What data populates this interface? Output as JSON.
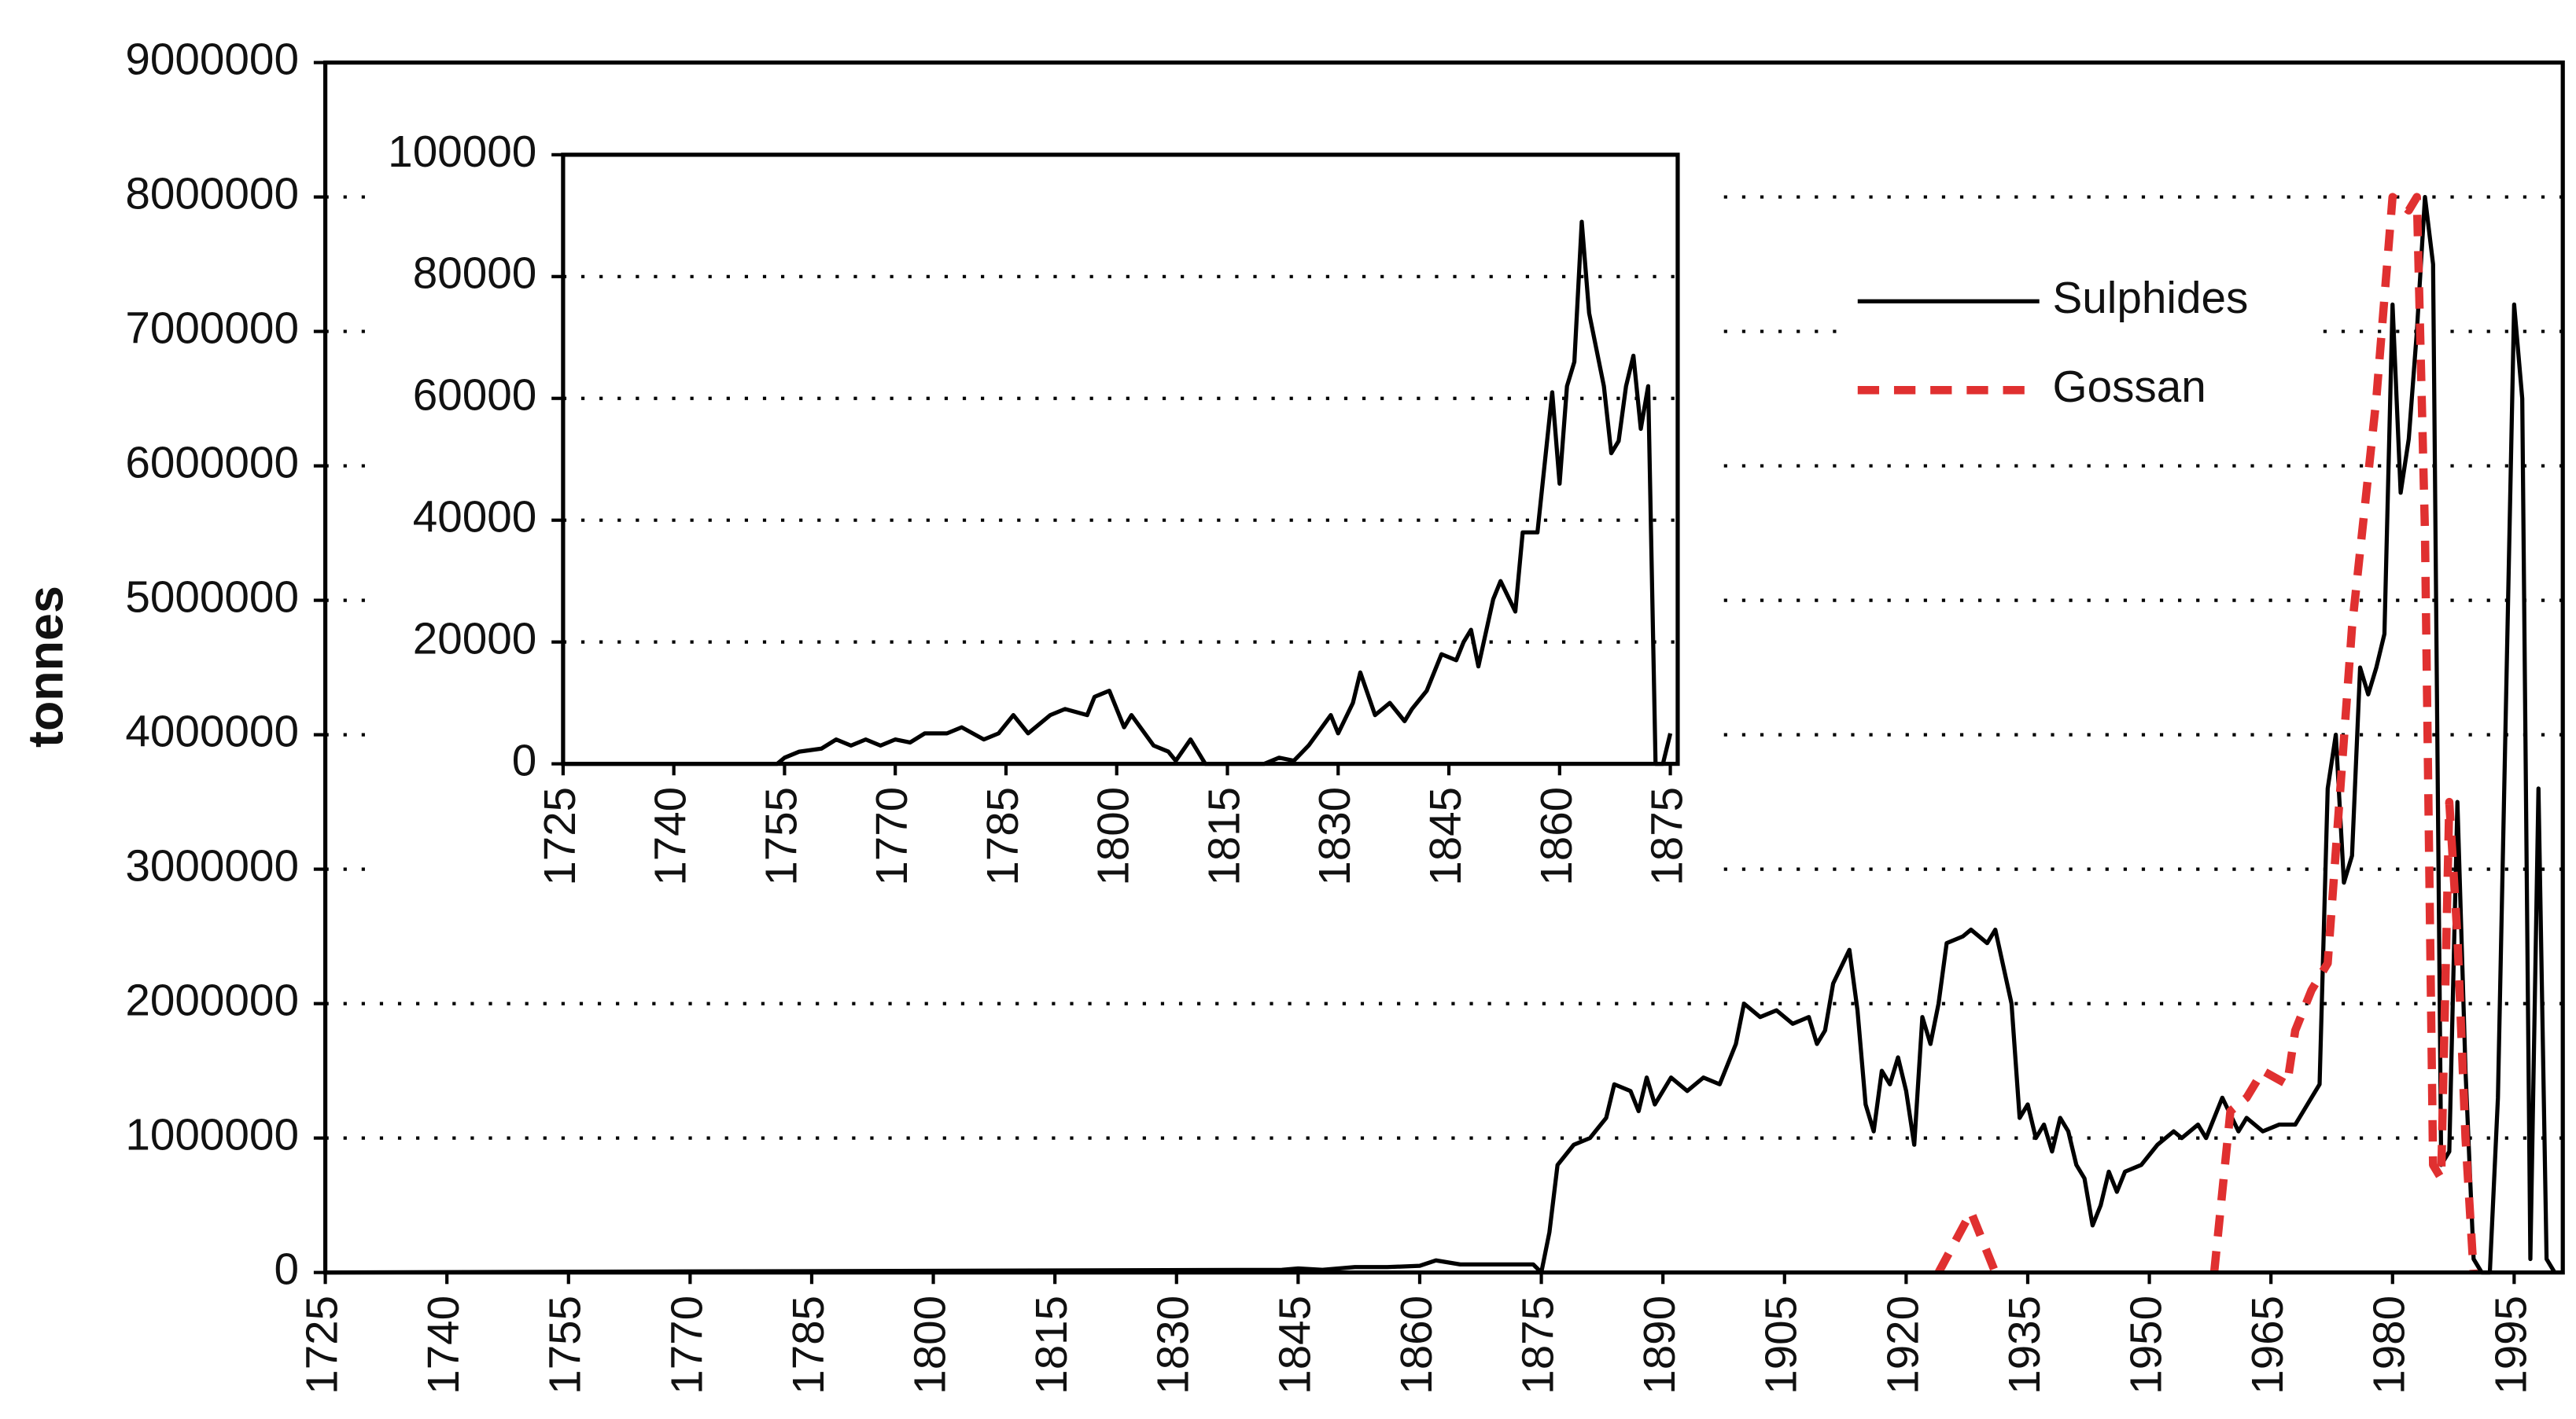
{
  "chart_data": [
    {
      "type": "line",
      "y_label": "tonnes",
      "xlim": [
        1725,
        2001
      ],
      "xticks": [
        1725,
        1740,
        1755,
        1770,
        1785,
        1800,
        1815,
        1830,
        1845,
        1860,
        1875,
        1890,
        1905,
        1920,
        1935,
        1950,
        1965,
        1980,
        1995
      ],
      "ylim": [
        0,
        9000000
      ],
      "yticks": [
        0,
        1000000,
        2000000,
        3000000,
        4000000,
        5000000,
        6000000,
        7000000,
        8000000,
        9000000
      ],
      "grid": true,
      "legend": "upper right",
      "series": [
        {
          "name": "Sulphides",
          "color": "#000000",
          "linestyle": "solid",
          "x": [
            1725,
            1843,
            1845,
            1848,
            1852,
            1856,
            1860,
            1862,
            1865,
            1870,
            1874,
            1875,
            1876,
            1877,
            1879,
            1881,
            1883,
            1884,
            1886,
            1887,
            1888,
            1889,
            1891,
            1893,
            1895,
            1897,
            1899,
            1900,
            1902,
            1904,
            1906,
            1908,
            1909,
            1910,
            1911,
            1913,
            1914,
            1915,
            1916,
            1917,
            1918,
            1919,
            1920,
            1921,
            1922,
            1923,
            1924,
            1925,
            1927,
            1928,
            1930,
            1931,
            1933,
            1934,
            1935,
            1936,
            1937,
            1938,
            1939,
            1940,
            1941,
            1942,
            1943,
            1944,
            1945,
            1946,
            1947,
            1949,
            1951,
            1953,
            1954,
            1956,
            1957,
            1958,
            1959,
            1961,
            1962,
            1964,
            1966,
            1968,
            1969,
            1971,
            1972,
            1973,
            1974,
            1975,
            1976,
            1977,
            1978,
            1979,
            1980,
            1981,
            1982,
            1983,
            1984,
            1985,
            1986,
            1987,
            1988,
            1989,
            1990,
            1991,
            1992,
            1993,
            1995,
            1996,
            1997,
            1998,
            1999,
            2000
          ],
          "values": [
            0,
            20000,
            30000,
            20000,
            40000,
            40000,
            50000,
            90000,
            60000,
            60000,
            60000,
            0,
            300000,
            800000,
            950000,
            1000000,
            1150000,
            1400000,
            1350000,
            1200000,
            1450000,
            1250000,
            1450000,
            1350000,
            1450000,
            1400000,
            1700000,
            2000000,
            1900000,
            1950000,
            1850000,
            1900000,
            1700000,
            1800000,
            2150000,
            2400000,
            1950000,
            1250000,
            1050000,
            1500000,
            1400000,
            1600000,
            1350000,
            950000,
            1900000,
            1700000,
            2000000,
            2450000,
            2500000,
            2550000,
            2450000,
            2550000,
            2000000,
            1150000,
            1250000,
            1000000,
            1100000,
            900000,
            1150000,
            1050000,
            800000,
            700000,
            350000,
            500000,
            750000,
            600000,
            750000,
            800000,
            950000,
            1050000,
            1000000,
            1100000,
            1000000,
            1150000,
            1300000,
            1050000,
            1150000,
            1050000,
            1100000,
            1100000,
            1200000,
            1400000,
            3600000,
            4000000,
            2900000,
            3100000,
            4500000,
            4300000,
            4500000,
            4750000,
            7200000,
            5800000,
            6200000,
            7000000,
            8000000,
            7500000,
            800000,
            900000,
            3500000,
            1500000,
            100000,
            0,
            0,
            1300000,
            7200000,
            6500000,
            100000,
            3600000,
            100000,
            0
          ]
        },
        {
          "name": "Gossan",
          "color": "#e03030",
          "linestyle": "dashed",
          "x": [
            1924,
            1928,
            1931,
            1945,
            1958,
            1959,
            1960,
            1962,
            1964,
            1967,
            1968,
            1970,
            1972,
            1975,
            1978,
            1980,
            1982,
            1983,
            1984,
            1985,
            1986,
            1987,
            1988,
            1989,
            1990
          ],
          "values": [
            0,
            450000,
            0,
            null,
            0,
            600000,
            1200000,
            1300000,
            1500000,
            1400000,
            1800000,
            2100000,
            2300000,
            4800000,
            6500000,
            8000000,
            7900000,
            8000000,
            5500000,
            800000,
            700000,
            3500000,
            2500000,
            1000000,
            0
          ]
        }
      ]
    },
    {
      "type": "line",
      "xlim": [
        1725,
        1876
      ],
      "xticks": [
        1725,
        1740,
        1755,
        1770,
        1785,
        1800,
        1815,
        1830,
        1845,
        1860,
        1875
      ],
      "ylim": [
        0,
        100000
      ],
      "yticks": [
        0,
        20000,
        40000,
        60000,
        80000,
        100000
      ],
      "grid": true,
      "series": [
        {
          "color": "#000000",
          "linestyle": "solid",
          "x": [
            1725,
            1754,
            1755,
            1757,
            1760,
            1762,
            1764,
            1766,
            1768,
            1770,
            1772,
            1774,
            1777,
            1779,
            1782,
            1784,
            1786,
            1788,
            1791,
            1793,
            1796,
            1797,
            1799,
            1801,
            1802,
            1805,
            1807,
            1808,
            1810,
            1812,
            1820,
            1822,
            1824,
            1826,
            1829,
            1830,
            1832,
            1833,
            1835,
            1837,
            1839,
            1840,
            1842,
            1844,
            1846,
            1847,
            1848,
            1849,
            1851,
            1852,
            1854,
            1855,
            1857,
            1859,
            1860,
            1861,
            1862,
            1863,
            1864,
            1866,
            1867,
            1868,
            1869,
            1870,
            1871,
            1872,
            1873,
            1874,
            1875
          ],
          "values": [
            0,
            0,
            1000,
            2000,
            2500,
            4000,
            3000,
            4000,
            3000,
            4000,
            3500,
            5000,
            5000,
            6000,
            4000,
            5000,
            8000,
            5000,
            8000,
            9000,
            8000,
            11000,
            12000,
            6000,
            8000,
            3000,
            2000,
            500,
            4000,
            0,
            0,
            1000,
            500,
            3000,
            8000,
            5000,
            10000,
            15000,
            8000,
            10000,
            7000,
            9000,
            12000,
            18000,
            17000,
            20000,
            22000,
            16000,
            27000,
            30000,
            25000,
            38000,
            38000,
            61000,
            46000,
            62000,
            66000,
            89000,
            74000,
            62000,
            51000,
            53000,
            62000,
            67000,
            55000,
            62000,
            0,
            0,
            5000
          ]
        }
      ]
    }
  ]
}
